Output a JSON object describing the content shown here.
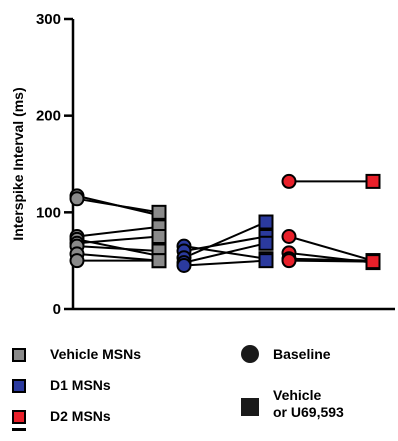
{
  "chart_data": {
    "type": "scatter",
    "ylabel": "Interspike Interval (ms)",
    "ylim": [
      0,
      300
    ],
    "yticks": [
      "0",
      "100",
      "200",
      "300"
    ],
    "groups": [
      {
        "name": "Vehicle MSNs",
        "color": "#8a8a8a",
        "pairs": [
          [
            117,
            97
          ],
          [
            114,
            100
          ],
          [
            75,
            85
          ],
          [
            72,
            55
          ],
          [
            68,
            75
          ],
          [
            65,
            60
          ],
          [
            57,
            50
          ],
          [
            50,
            50
          ]
        ]
      },
      {
        "name": "D1 MSNs",
        "color": "#2b3a9e",
        "pairs": [
          [
            65,
            52
          ],
          [
            60,
            75
          ],
          [
            53,
            90
          ],
          [
            48,
            68
          ],
          [
            45,
            50
          ]
        ]
      },
      {
        "name": "D2 MSNs",
        "color": "#e8202a",
        "pairs": [
          [
            132,
            132
          ],
          [
            75,
            50
          ],
          [
            58,
            48
          ],
          [
            52,
            50
          ],
          [
            50,
            49
          ]
        ]
      }
    ]
  },
  "legend": {
    "groups": [
      {
        "label": "Vehicle MSNs",
        "color": "#8a8a8a"
      },
      {
        "label": "D1 MSNs",
        "color": "#2b3a9e"
      },
      {
        "label": "D2 MSNs",
        "color": "#e8202a"
      }
    ],
    "baseline_label": "Baseline",
    "treatment_label_line1": "Vehicle",
    "treatment_label_line2": "or U69,593"
  }
}
